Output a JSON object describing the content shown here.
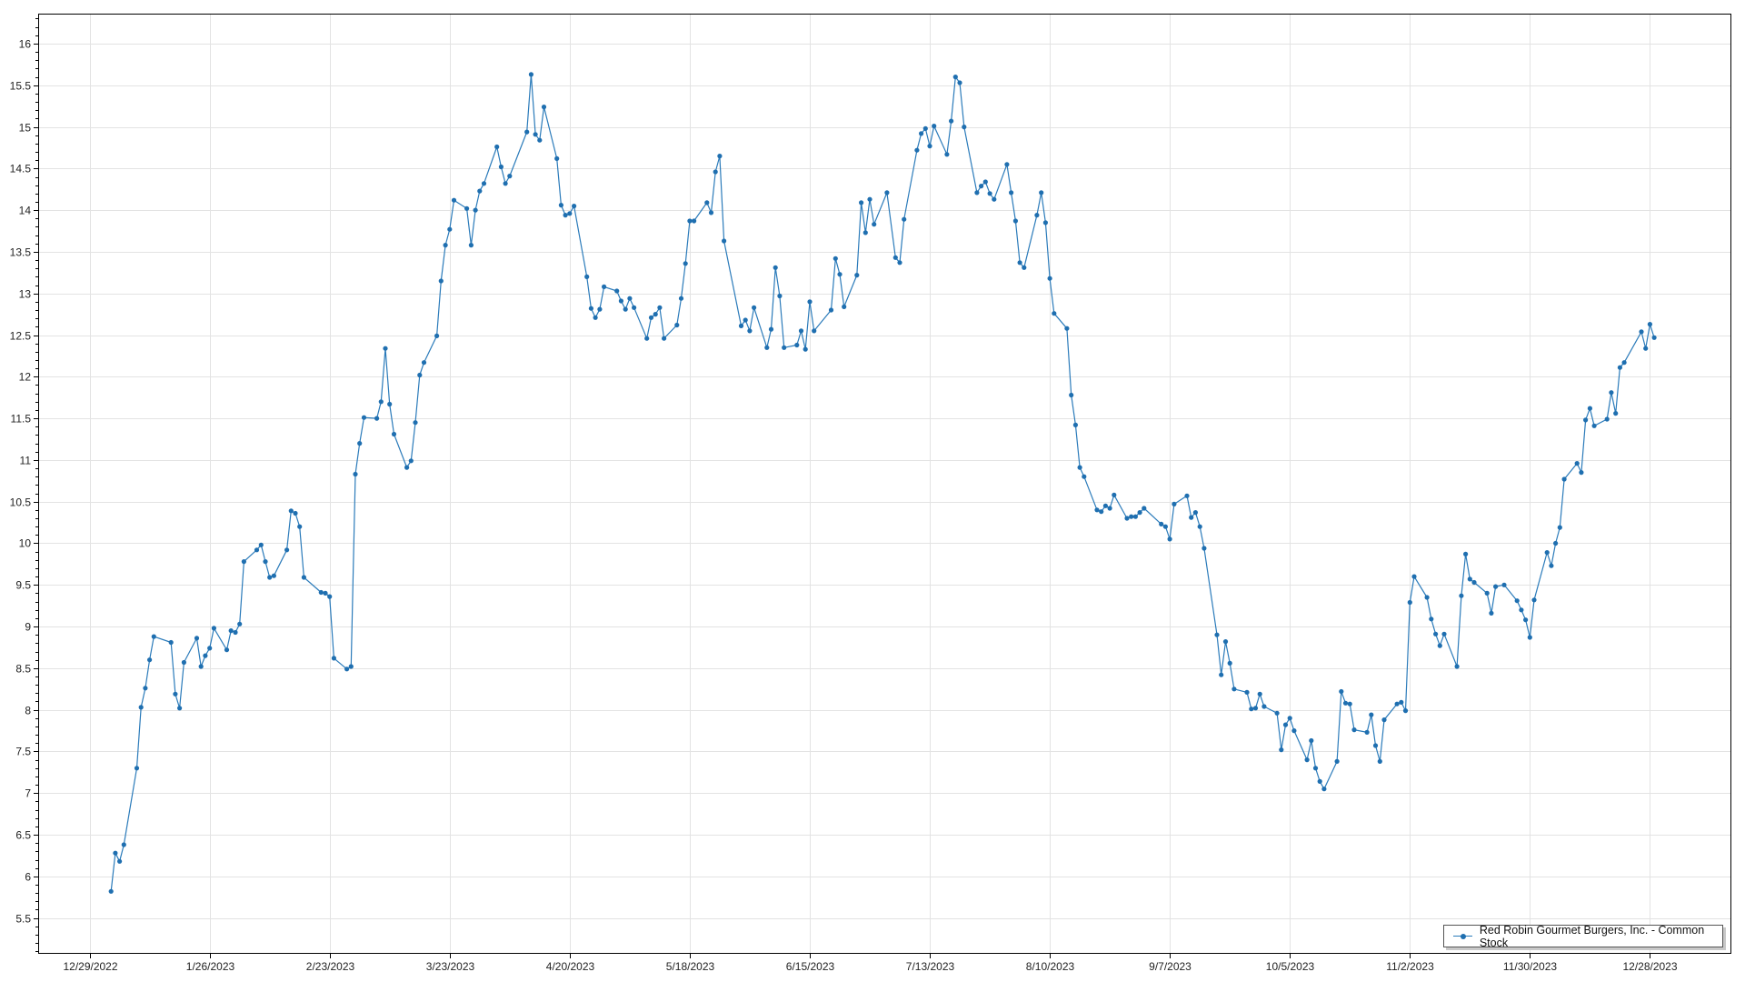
{
  "chart_data": {
    "type": "line",
    "title": "",
    "xlabel": "",
    "ylabel": "",
    "series_color": "#2b7bba",
    "marker_color": "#1f6fb0",
    "grid": true,
    "legend_position": "bottom-right",
    "xlim": [
      "2022-12-17",
      "2024-01-16"
    ],
    "ylim": [
      5.07,
      16.36
    ],
    "y_ticks": [
      5.5,
      6,
      6.5,
      7,
      7.5,
      8,
      8.5,
      9,
      9.5,
      10,
      10.5,
      11,
      11.5,
      12,
      12.5,
      13,
      13.5,
      14,
      14.5,
      15,
      15.5,
      16
    ],
    "x_ticks": [
      {
        "date": "2022-12-29",
        "label": "12/29/2022"
      },
      {
        "date": "2023-01-26",
        "label": "1/26/2023"
      },
      {
        "date": "2023-02-23",
        "label": "2/23/2023"
      },
      {
        "date": "2023-03-23",
        "label": "3/23/2023"
      },
      {
        "date": "2023-04-20",
        "label": "4/20/2023"
      },
      {
        "date": "2023-05-18",
        "label": "5/18/2023"
      },
      {
        "date": "2023-06-15",
        "label": "6/15/2023"
      },
      {
        "date": "2023-07-13",
        "label": "7/13/2023"
      },
      {
        "date": "2023-08-10",
        "label": "8/10/2023"
      },
      {
        "date": "2023-09-07",
        "label": "9/7/2023"
      },
      {
        "date": "2023-10-05",
        "label": "10/5/2023"
      },
      {
        "date": "2023-11-02",
        "label": "11/2/2023"
      },
      {
        "date": "2023-11-30",
        "label": "11/30/2023"
      },
      {
        "date": "2023-12-28",
        "label": "12/28/2023"
      }
    ],
    "series": [
      {
        "name": "Red Robin Gourmet Burgers, Inc. - Common Stock",
        "points": [
          [
            "2023-01-03",
            5.82
          ],
          [
            "2023-01-04",
            6.28
          ],
          [
            "2023-01-05",
            6.18
          ],
          [
            "2023-01-06",
            6.38
          ],
          [
            "2023-01-09",
            7.3
          ],
          [
            "2023-01-10",
            8.03
          ],
          [
            "2023-01-11",
            8.26
          ],
          [
            "2023-01-12",
            8.6
          ],
          [
            "2023-01-13",
            8.88
          ],
          [
            "2023-01-17",
            8.81
          ],
          [
            "2023-01-18",
            8.19
          ],
          [
            "2023-01-19",
            8.02
          ],
          [
            "2023-01-20",
            8.57
          ],
          [
            "2023-01-23",
            8.86
          ],
          [
            "2023-01-24",
            8.52
          ],
          [
            "2023-01-25",
            8.65
          ],
          [
            "2023-01-26",
            8.74
          ],
          [
            "2023-01-27",
            8.98
          ],
          [
            "2023-01-30",
            8.72
          ],
          [
            "2023-01-31",
            8.95
          ],
          [
            "2023-02-01",
            8.93
          ],
          [
            "2023-02-02",
            9.03
          ],
          [
            "2023-02-03",
            9.78
          ],
          [
            "2023-02-06",
            9.92
          ],
          [
            "2023-02-07",
            9.98
          ],
          [
            "2023-02-08",
            9.78
          ],
          [
            "2023-02-09",
            9.59
          ],
          [
            "2023-02-10",
            9.61
          ],
          [
            "2023-02-13",
            9.92
          ],
          [
            "2023-02-14",
            10.39
          ],
          [
            "2023-02-15",
            10.36
          ],
          [
            "2023-02-16",
            10.2
          ],
          [
            "2023-02-17",
            9.59
          ],
          [
            "2023-02-21",
            9.41
          ],
          [
            "2023-02-22",
            9.4
          ],
          [
            "2023-02-23",
            9.36
          ],
          [
            "2023-02-24",
            8.62
          ],
          [
            "2023-02-27",
            8.49
          ],
          [
            "2023-02-28",
            8.52
          ],
          [
            "2023-03-01",
            10.83
          ],
          [
            "2023-03-02",
            11.2
          ],
          [
            "2023-03-03",
            11.51
          ],
          [
            "2023-03-06",
            11.5
          ],
          [
            "2023-03-07",
            11.7
          ],
          [
            "2023-03-08",
            12.34
          ],
          [
            "2023-03-09",
            11.67
          ],
          [
            "2023-03-10",
            11.31
          ],
          [
            "2023-03-13",
            10.91
          ],
          [
            "2023-03-14",
            10.99
          ],
          [
            "2023-03-15",
            11.45
          ],
          [
            "2023-03-16",
            12.02
          ],
          [
            "2023-03-17",
            12.17
          ],
          [
            "2023-03-20",
            12.49
          ],
          [
            "2023-03-21",
            13.15
          ],
          [
            "2023-03-22",
            13.58
          ],
          [
            "2023-03-23",
            13.77
          ],
          [
            "2023-03-24",
            14.12
          ],
          [
            "2023-03-27",
            14.02
          ],
          [
            "2023-03-28",
            13.58
          ],
          [
            "2023-03-29",
            14.0
          ],
          [
            "2023-03-30",
            14.23
          ],
          [
            "2023-03-31",
            14.32
          ],
          [
            "2023-04-03",
            14.76
          ],
          [
            "2023-04-04",
            14.52
          ],
          [
            "2023-04-05",
            14.32
          ],
          [
            "2023-04-06",
            14.41
          ],
          [
            "2023-04-10",
            14.94
          ],
          [
            "2023-04-11",
            15.63
          ],
          [
            "2023-04-12",
            14.91
          ],
          [
            "2023-04-13",
            14.84
          ],
          [
            "2023-04-14",
            15.24
          ],
          [
            "2023-04-17",
            14.62
          ],
          [
            "2023-04-18",
            14.06
          ],
          [
            "2023-04-19",
            13.94
          ],
          [
            "2023-04-20",
            13.96
          ],
          [
            "2023-04-21",
            14.05
          ],
          [
            "2023-04-24",
            13.2
          ],
          [
            "2023-04-25",
            12.82
          ],
          [
            "2023-04-26",
            12.71
          ],
          [
            "2023-04-27",
            12.81
          ],
          [
            "2023-04-28",
            13.08
          ],
          [
            "2023-05-01",
            13.03
          ],
          [
            "2023-05-02",
            12.91
          ],
          [
            "2023-05-03",
            12.81
          ],
          [
            "2023-05-04",
            12.94
          ],
          [
            "2023-05-05",
            12.83
          ],
          [
            "2023-05-08",
            12.46
          ],
          [
            "2023-05-09",
            12.71
          ],
          [
            "2023-05-10",
            12.75
          ],
          [
            "2023-05-11",
            12.83
          ],
          [
            "2023-05-12",
            12.46
          ],
          [
            "2023-05-15",
            12.62
          ],
          [
            "2023-05-16",
            12.94
          ],
          [
            "2023-05-17",
            13.36
          ],
          [
            "2023-05-18",
            13.87
          ],
          [
            "2023-05-19",
            13.87
          ],
          [
            "2023-05-22",
            14.09
          ],
          [
            "2023-05-23",
            13.97
          ],
          [
            "2023-05-24",
            14.46
          ],
          [
            "2023-05-25",
            14.65
          ],
          [
            "2023-05-26",
            13.63
          ],
          [
            "2023-05-30",
            12.61
          ],
          [
            "2023-05-31",
            12.68
          ],
          [
            "2023-06-01",
            12.55
          ],
          [
            "2023-06-02",
            12.83
          ],
          [
            "2023-06-05",
            12.35
          ],
          [
            "2023-06-06",
            12.57
          ],
          [
            "2023-06-07",
            13.31
          ],
          [
            "2023-06-08",
            12.97
          ],
          [
            "2023-06-09",
            12.35
          ],
          [
            "2023-06-12",
            12.38
          ],
          [
            "2023-06-13",
            12.55
          ],
          [
            "2023-06-14",
            12.33
          ],
          [
            "2023-06-15",
            12.9
          ],
          [
            "2023-06-16",
            12.55
          ],
          [
            "2023-06-20",
            12.8
          ],
          [
            "2023-06-21",
            13.42
          ],
          [
            "2023-06-22",
            13.23
          ],
          [
            "2023-06-23",
            12.84
          ],
          [
            "2023-06-26",
            13.22
          ],
          [
            "2023-06-27",
            14.09
          ],
          [
            "2023-06-28",
            13.73
          ],
          [
            "2023-06-29",
            14.13
          ],
          [
            "2023-06-30",
            13.83
          ],
          [
            "2023-07-03",
            14.21
          ],
          [
            "2023-07-05",
            13.43
          ],
          [
            "2023-07-06",
            13.37
          ],
          [
            "2023-07-07",
            13.89
          ],
          [
            "2023-07-10",
            14.72
          ],
          [
            "2023-07-11",
            14.92
          ],
          [
            "2023-07-12",
            14.98
          ],
          [
            "2023-07-13",
            14.77
          ],
          [
            "2023-07-14",
            15.01
          ],
          [
            "2023-07-17",
            14.67
          ],
          [
            "2023-07-18",
            15.07
          ],
          [
            "2023-07-19",
            15.6
          ],
          [
            "2023-07-20",
            15.53
          ],
          [
            "2023-07-21",
            15.0
          ],
          [
            "2023-07-24",
            14.21
          ],
          [
            "2023-07-25",
            14.29
          ],
          [
            "2023-07-26",
            14.34
          ],
          [
            "2023-07-27",
            14.2
          ],
          [
            "2023-07-28",
            14.13
          ],
          [
            "2023-07-31",
            14.55
          ],
          [
            "2023-08-01",
            14.21
          ],
          [
            "2023-08-02",
            13.87
          ],
          [
            "2023-08-03",
            13.37
          ],
          [
            "2023-08-04",
            13.31
          ],
          [
            "2023-08-07",
            13.94
          ],
          [
            "2023-08-08",
            14.21
          ],
          [
            "2023-08-09",
            13.85
          ],
          [
            "2023-08-10",
            13.18
          ],
          [
            "2023-08-11",
            12.76
          ],
          [
            "2023-08-14",
            12.58
          ],
          [
            "2023-08-15",
            11.78
          ],
          [
            "2023-08-16",
            11.42
          ],
          [
            "2023-08-17",
            10.91
          ],
          [
            "2023-08-18",
            10.8
          ],
          [
            "2023-08-21",
            10.4
          ],
          [
            "2023-08-22",
            10.38
          ],
          [
            "2023-08-23",
            10.45
          ],
          [
            "2023-08-24",
            10.42
          ],
          [
            "2023-08-25",
            10.58
          ],
          [
            "2023-08-28",
            10.3
          ],
          [
            "2023-08-29",
            10.32
          ],
          [
            "2023-08-30",
            10.32
          ],
          [
            "2023-08-31",
            10.37
          ],
          [
            "2023-09-01",
            10.42
          ],
          [
            "2023-09-05",
            10.23
          ],
          [
            "2023-09-06",
            10.2
          ],
          [
            "2023-09-07",
            10.05
          ],
          [
            "2023-09-08",
            10.47
          ],
          [
            "2023-09-11",
            10.57
          ],
          [
            "2023-09-12",
            10.31
          ],
          [
            "2023-09-13",
            10.37
          ],
          [
            "2023-09-14",
            10.2
          ],
          [
            "2023-09-15",
            9.94
          ],
          [
            "2023-09-18",
            8.9
          ],
          [
            "2023-09-19",
            8.42
          ],
          [
            "2023-09-20",
            8.82
          ],
          [
            "2023-09-21",
            8.56
          ],
          [
            "2023-09-22",
            8.25
          ],
          [
            "2023-09-25",
            8.21
          ],
          [
            "2023-09-26",
            8.01
          ],
          [
            "2023-09-27",
            8.02
          ],
          [
            "2023-09-28",
            8.19
          ],
          [
            "2023-09-29",
            8.04
          ],
          [
            "2023-10-02",
            7.96
          ],
          [
            "2023-10-03",
            7.52
          ],
          [
            "2023-10-04",
            7.82
          ],
          [
            "2023-10-05",
            7.9
          ],
          [
            "2023-10-06",
            7.75
          ],
          [
            "2023-10-09",
            7.4
          ],
          [
            "2023-10-10",
            7.63
          ],
          [
            "2023-10-11",
            7.3
          ],
          [
            "2023-10-12",
            7.14
          ],
          [
            "2023-10-13",
            7.05
          ],
          [
            "2023-10-16",
            7.38
          ],
          [
            "2023-10-17",
            8.22
          ],
          [
            "2023-10-18",
            8.08
          ],
          [
            "2023-10-19",
            8.07
          ],
          [
            "2023-10-20",
            7.76
          ],
          [
            "2023-10-23",
            7.73
          ],
          [
            "2023-10-24",
            7.94
          ],
          [
            "2023-10-25",
            7.57
          ],
          [
            "2023-10-26",
            7.38
          ],
          [
            "2023-10-27",
            7.88
          ],
          [
            "2023-10-30",
            8.07
          ],
          [
            "2023-10-31",
            8.09
          ],
          [
            "2023-11-01",
            7.99
          ],
          [
            "2023-11-02",
            9.29
          ],
          [
            "2023-11-03",
            9.6
          ],
          [
            "2023-11-06",
            9.35
          ],
          [
            "2023-11-07",
            9.09
          ],
          [
            "2023-11-08",
            8.91
          ],
          [
            "2023-11-09",
            8.77
          ],
          [
            "2023-11-10",
            8.91
          ],
          [
            "2023-11-13",
            8.52
          ],
          [
            "2023-11-14",
            9.37
          ],
          [
            "2023-11-15",
            9.87
          ],
          [
            "2023-11-16",
            9.57
          ],
          [
            "2023-11-17",
            9.53
          ],
          [
            "2023-11-20",
            9.4
          ],
          [
            "2023-11-21",
            9.16
          ],
          [
            "2023-11-22",
            9.48
          ],
          [
            "2023-11-24",
            9.5
          ],
          [
            "2023-11-27",
            9.31
          ],
          [
            "2023-11-28",
            9.2
          ],
          [
            "2023-11-29",
            9.08
          ],
          [
            "2023-11-30",
            8.87
          ],
          [
            "2023-12-01",
            9.32
          ],
          [
            "2023-12-04",
            9.89
          ],
          [
            "2023-12-05",
            9.73
          ],
          [
            "2023-12-06",
            10.0
          ],
          [
            "2023-12-07",
            10.19
          ],
          [
            "2023-12-08",
            10.77
          ],
          [
            "2023-12-11",
            10.96
          ],
          [
            "2023-12-12",
            10.85
          ],
          [
            "2023-12-13",
            11.48
          ],
          [
            "2023-12-14",
            11.62
          ],
          [
            "2023-12-15",
            11.41
          ],
          [
            "2023-12-18",
            11.49
          ],
          [
            "2023-12-19",
            11.81
          ],
          [
            "2023-12-20",
            11.56
          ],
          [
            "2023-12-21",
            12.11
          ],
          [
            "2023-12-22",
            12.17
          ],
          [
            "2023-12-26",
            12.54
          ],
          [
            "2023-12-27",
            12.34
          ],
          [
            "2023-12-28",
            12.63
          ],
          [
            "2023-12-29",
            12.47
          ]
        ]
      }
    ]
  },
  "legend": {
    "label": "Red Robin Gourmet Burgers, Inc. - Common Stock"
  }
}
